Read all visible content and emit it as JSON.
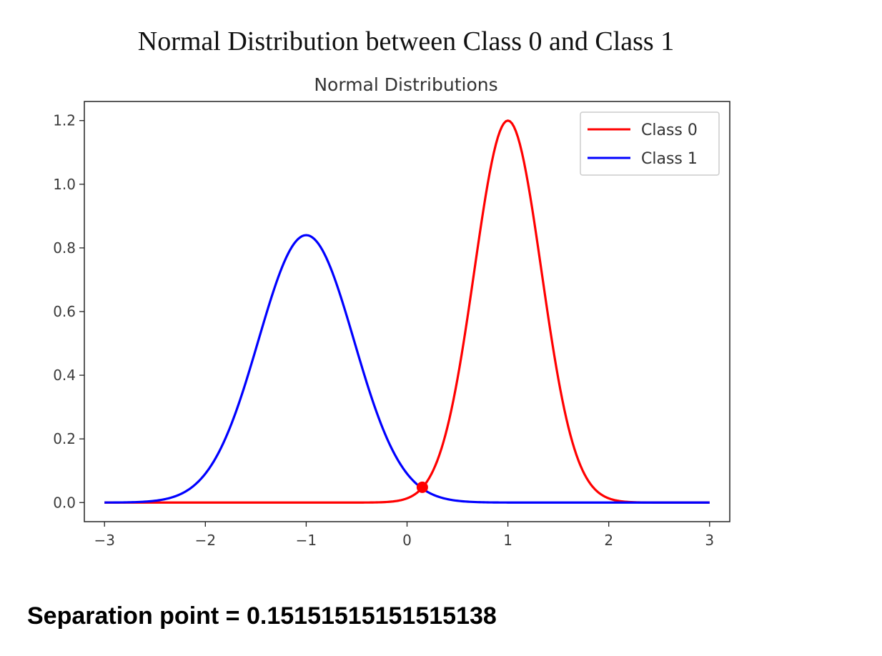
{
  "heading": "Normal Distribution between Class 0 and Class 1",
  "separation_text": "Separation point = 0.15151515151515138",
  "chart_data": {
    "type": "line",
    "title": "Normal Distributions",
    "xlabel": "",
    "ylabel": "",
    "xlim": [
      -3.2,
      3.2
    ],
    "ylim": [
      -0.06,
      1.26
    ],
    "x_ticks": [
      -3,
      -2,
      -1,
      0,
      1,
      2,
      3
    ],
    "x_tick_labels": [
      "−3",
      "−2",
      "−1",
      "0",
      "1",
      "2",
      "3"
    ],
    "y_ticks": [
      0.0,
      0.2,
      0.4,
      0.6,
      0.8,
      1.0,
      1.2
    ],
    "y_tick_labels": [
      "0.0",
      "0.2",
      "0.4",
      "0.6",
      "0.8",
      "1.0",
      "1.2"
    ],
    "grid": false,
    "legend_position": "top-right",
    "x_range": [
      -3,
      3
    ],
    "series": [
      {
        "name": "Class 0",
        "color": "#ff0000",
        "mean": 1.0,
        "std": 0.333,
        "peak": 1.2
      },
      {
        "name": "Class 1",
        "color": "#0000ff",
        "mean": -1.0,
        "std": 0.474,
        "peak": 0.84
      }
    ],
    "separation_point": {
      "x": 0.1515,
      "y": 0.048,
      "color": "#ff0000"
    }
  }
}
